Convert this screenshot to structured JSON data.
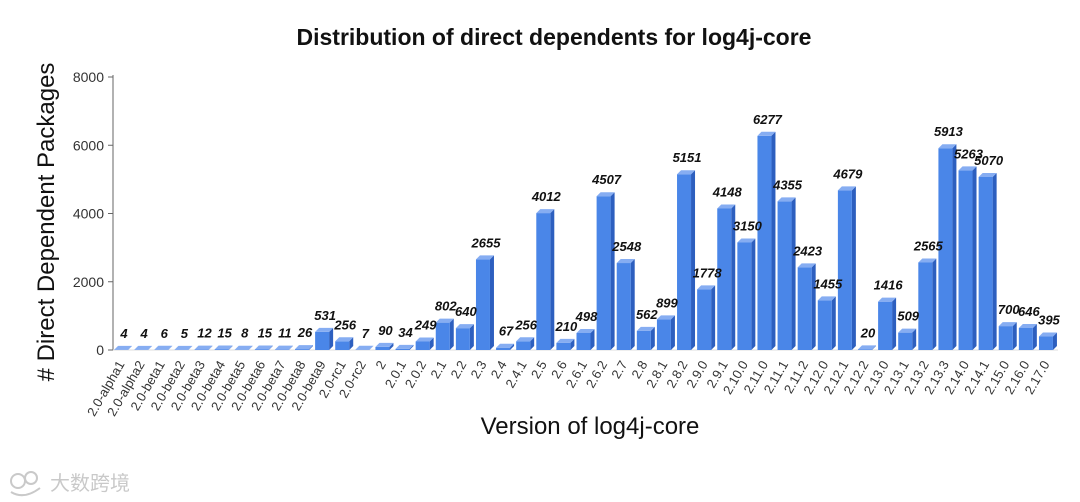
{
  "chart_data": {
    "type": "bar",
    "title": "Distribution of direct dependents for log4j-core",
    "xlabel": "Version of log4j-core",
    "ylabel": "# Direct Dependent Packages",
    "ylim": [
      0,
      8000
    ],
    "yticks": [
      0,
      2000,
      4000,
      6000,
      8000
    ],
    "grid": false,
    "legend": "none",
    "categories": [
      "2.0-alpha1",
      "2.0-alpha2",
      "2.0-beta1",
      "2.0-beta2",
      "2.0-beta3",
      "2.0-beta4",
      "2.0-beta5",
      "2.0-beta6",
      "2.0-beta7",
      "2.0-beta8",
      "2.0-beta9",
      "2.0-rc1",
      "2.0-rc2",
      "2",
      "2.0.1",
      "2.0.2",
      "2.1",
      "2.2",
      "2.3",
      "2.4",
      "2.4.1",
      "2.5",
      "2.6",
      "2.6.1",
      "2.6.2",
      "2.7",
      "2.8",
      "2.8.1",
      "2.8.2",
      "2.9.0",
      "2.9.1",
      "2.10.0",
      "2.11.0",
      "2.11.1",
      "2.11.2",
      "2.12.0",
      "2.12.1",
      "2.12.2",
      "2.13.0",
      "2.13.1",
      "2.13.2",
      "2.13.3",
      "2.14.0",
      "2.14.1",
      "2.15.0",
      "2.16.0",
      "2.17.0"
    ],
    "values": [
      4,
      4,
      6,
      5,
      12,
      15,
      8,
      15,
      11,
      26,
      531,
      256,
      7,
      90,
      34,
      249,
      802,
      640,
      2655,
      67,
      256,
      4012,
      210,
      498,
      4507,
      2548,
      562,
      899,
      5151,
      1778,
      4148,
      3150,
      6277,
      4355,
      2423,
      1455,
      4679,
      20,
      1416,
      509,
      2565,
      5913,
      5263,
      5070,
      700,
      646,
      395
    ]
  },
  "colors": {
    "bar_front": "#4a86e8",
    "bar_side": "#2d5fbf",
    "bar_top": "#86adf2",
    "axis": "#666666",
    "watermark": "#c9c9c9"
  },
  "watermark": {
    "text": "大数跨境",
    "icon": "logo-icon"
  }
}
